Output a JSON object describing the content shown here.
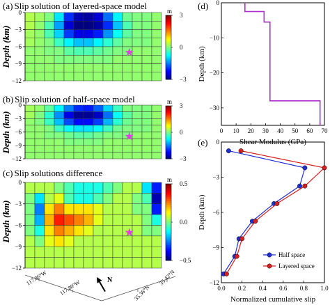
{
  "panels": [
    {
      "label": "(a)",
      "title": "Slip solution of layered-space model"
    },
    {
      "label": "(b)",
      "title": "Slip solution of half-space model"
    },
    {
      "label": "(c)",
      "title": "Slip solutions difference"
    },
    {
      "label": "(d)"
    },
    {
      "label": "(e)"
    }
  ],
  "slip_axis": {
    "ylabel": "Depth (km)",
    "ticks": [
      0,
      -3,
      -6,
      -9,
      -12
    ]
  },
  "colorbar_units": "m",
  "map_labels": {
    "lon1": "117.86°W",
    "lon2": "117.80°W",
    "lat1": "35.36°N",
    "lat2": "35.42°N",
    "north": "N"
  },
  "colors": {
    "star": "#e040e0",
    "modulus_line": "#b030d0",
    "half_space": "#1f2fd6",
    "layered_space": "#d62020"
  },
  "chart_data": [
    {
      "type": "heatmap",
      "title": "Slip solution of layered-space model",
      "ylabel": "Depth (km)",
      "ylim": [
        -12,
        0
      ],
      "colorbar": {
        "label": "m",
        "range": [
          -3,
          3
        ],
        "ticks": [
          3,
          0,
          -3
        ]
      },
      "grid": [
        [
          0.3,
          0.2,
          0.0,
          -0.9,
          -2.0,
          -2.7,
          -2.8,
          -2.5,
          -1.6,
          -0.8,
          -0.1,
          0.0,
          0.0,
          0.1
        ],
        [
          0.3,
          0.1,
          -0.3,
          -1.3,
          -2.5,
          -3.0,
          -3.0,
          -2.8,
          -2.0,
          -1.1,
          -0.3,
          0.0,
          0.0,
          0.1
        ],
        [
          0.2,
          0.1,
          -0.3,
          -1.0,
          -1.9,
          -2.4,
          -2.4,
          -2.1,
          -1.4,
          -0.7,
          -0.2,
          0.0,
          0.0,
          0.1
        ],
        [
          0.2,
          0.1,
          0.0,
          -0.4,
          -0.8,
          -1.1,
          -1.1,
          -0.8,
          -0.5,
          -0.2,
          0.0,
          0.0,
          0.0,
          0.1
        ],
        [
          0.1,
          0.1,
          0.0,
          0.0,
          -0.2,
          -0.3,
          -0.3,
          -0.2,
          -0.1,
          0.0,
          0.0,
          0.1,
          0.1,
          0.1
        ],
        [
          0.1,
          0.1,
          0.1,
          0.0,
          0.0,
          0.0,
          0.0,
          0.0,
          0.0,
          0.1,
          0.1,
          0.1,
          0.1,
          0.1
        ],
        [
          0.1,
          0.1,
          0.1,
          0.1,
          0.1,
          0.1,
          0.1,
          0.1,
          0.1,
          0.1,
          0.1,
          0.1,
          0.1,
          0.1
        ],
        [
          0.1,
          0.1,
          0.1,
          0.1,
          0.1,
          0.1,
          0.1,
          0.1,
          0.1,
          0.1,
          0.1,
          0.1,
          0.1,
          0.1
        ]
      ],
      "hypocenter_depth": -7
    },
    {
      "type": "heatmap",
      "title": "Slip solution of half-space model",
      "ylabel": "Depth (km)",
      "ylim": [
        -12,
        0
      ],
      "colorbar": {
        "label": "m",
        "range": [
          -3,
          3
        ],
        "ticks": [
          3,
          0,
          -3
        ]
      },
      "grid": [
        [
          0.2,
          0.1,
          -0.2,
          -0.8,
          -1.5,
          -2.0,
          -2.1,
          -1.7,
          -1.0,
          -0.4,
          0.0,
          0.0,
          0.0,
          0.1
        ],
        [
          0.2,
          0.0,
          -0.5,
          -1.4,
          -2.4,
          -2.9,
          -2.9,
          -2.6,
          -1.6,
          -0.7,
          -0.2,
          0.0,
          0.0,
          0.1
        ],
        [
          0.1,
          0.0,
          -0.4,
          -1.1,
          -1.8,
          -2.2,
          -2.2,
          -1.9,
          -1.2,
          -0.5,
          -0.1,
          0.0,
          0.0,
          0.1
        ],
        [
          0.1,
          0.1,
          0.0,
          -0.4,
          -0.7,
          -0.9,
          -0.9,
          -0.7,
          -0.4,
          -0.1,
          0.0,
          0.0,
          0.0,
          0.1
        ],
        [
          0.1,
          0.1,
          0.0,
          0.0,
          -0.1,
          -0.2,
          -0.2,
          -0.1,
          0.0,
          0.0,
          0.0,
          0.1,
          0.1,
          0.1
        ],
        [
          0.1,
          0.1,
          0.1,
          0.1,
          0.0,
          0.0,
          0.0,
          0.0,
          0.1,
          0.1,
          0.1,
          0.1,
          0.1,
          0.1
        ],
        [
          0.1,
          0.1,
          0.1,
          0.1,
          0.1,
          0.1,
          0.1,
          0.1,
          0.1,
          0.1,
          0.1,
          0.1,
          0.1,
          0.1
        ],
        [
          0.1,
          0.1,
          0.1,
          0.1,
          0.1,
          0.1,
          0.1,
          0.1,
          0.1,
          0.1,
          0.1,
          0.1,
          0.1,
          0.1
        ]
      ],
      "hypocenter_depth": -7
    },
    {
      "type": "heatmap",
      "title": "Slip solutions difference",
      "ylabel": "Depth (km)",
      "ylim": [
        -12,
        0
      ],
      "colorbar": {
        "label": "m",
        "range": [
          -0.5,
          0.5
        ],
        "ticks": [
          0.5,
          0.0,
          -0.5
        ]
      },
      "grid": [
        [
          0.05,
          0.05,
          0.05,
          0.0,
          -0.05,
          -0.1,
          -0.1,
          -0.1,
          -0.05,
          0.0,
          0.05,
          0.05,
          -0.15,
          -0.35
        ],
        [
          0.0,
          -0.15,
          0.05,
          0.1,
          -0.05,
          -0.1,
          -0.1,
          -0.05,
          0.0,
          0.05,
          0.05,
          0.0,
          -0.05,
          -0.45
        ],
        [
          0.0,
          -0.25,
          0.15,
          0.25,
          0.15,
          0.15,
          0.15,
          0.1,
          0.05,
          0.05,
          0.05,
          0.0,
          0.0,
          -0.35
        ],
        [
          0.0,
          -0.2,
          0.2,
          0.35,
          0.3,
          0.25,
          0.2,
          0.1,
          0.05,
          0.05,
          0.05,
          0.05,
          0.0,
          -0.1
        ],
        [
          0.0,
          -0.1,
          0.15,
          0.25,
          0.2,
          0.15,
          0.1,
          0.05,
          0.05,
          0.05,
          0.05,
          0.05,
          0.0,
          0.0
        ],
        [
          0.05,
          0.0,
          0.1,
          0.15,
          0.1,
          0.05,
          0.05,
          0.05,
          0.05,
          0.05,
          0.05,
          0.05,
          0.05,
          0.05
        ],
        [
          0.05,
          0.05,
          0.05,
          0.05,
          0.05,
          0.05,
          0.05,
          0.05,
          0.05,
          0.05,
          0.05,
          0.05,
          0.05,
          0.05
        ],
        [
          0.05,
          0.05,
          0.05,
          0.05,
          0.05,
          0.05,
          0.05,
          0.05,
          0.05,
          0.05,
          0.05,
          0.05,
          0.05,
          0.05
        ]
      ],
      "hypocenter_depth": -7
    },
    {
      "type": "line",
      "title": "",
      "xlabel": "Shear Modulus (GPa)",
      "ylabel": "Depth (km)",
      "xlim": [
        0,
        70
      ],
      "ylim": [
        -35,
        0
      ],
      "xticks": [
        0,
        10,
        20,
        30,
        40,
        50,
        60,
        70
      ],
      "yticks": [
        0,
        -10,
        -20,
        -30
      ],
      "series": [
        {
          "x": [
            16,
            16,
            29,
            29,
            33,
            33,
            67,
            67
          ],
          "y": [
            0,
            -2.5,
            -2.5,
            -5.5,
            -5.5,
            -28,
            -28,
            -35
          ]
        }
      ]
    },
    {
      "type": "line",
      "title": "",
      "xlabel": "Normalized cumulative slip",
      "ylabel": "Depth (km)",
      "xlim": [
        0,
        1
      ],
      "ylim": [
        -12,
        0
      ],
      "xticks": [
        0.0,
        0.2,
        0.4,
        0.6,
        0.8,
        1.0
      ],
      "xtick_labels": [
        "0.0",
        "0.2",
        "0.4",
        "0.6",
        "0.8",
        "1.0"
      ],
      "yticks": [
        0,
        -3,
        -6,
        -9,
        -12
      ],
      "legend": "lower-right",
      "series": [
        {
          "name": "Half space",
          "x": [
            0.07,
            0.81,
            0.76,
            0.51,
            0.3,
            0.17,
            0.13,
            0.02
          ],
          "y": [
            -0.75,
            -2.2,
            -3.75,
            -5.25,
            -6.75,
            -8.25,
            -9.75,
            -11.25
          ]
        },
        {
          "name": "Layered space",
          "x": [
            0.19,
            1.0,
            0.81,
            0.54,
            0.33,
            0.2,
            0.15,
            0.05
          ],
          "y": [
            -0.75,
            -2.2,
            -3.75,
            -5.25,
            -6.75,
            -8.25,
            -9.75,
            -11.25
          ]
        }
      ]
    }
  ]
}
